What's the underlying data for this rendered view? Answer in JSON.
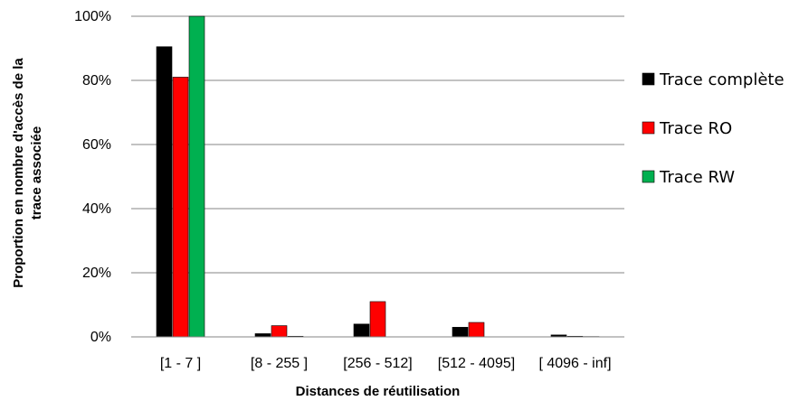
{
  "chart_data": {
    "type": "bar",
    "title": "",
    "xlabel": "Distances de réutilisation",
    "ylabel_lines": [
      "Proportion en nombre d'accès  de la",
      "trace  associée"
    ],
    "categories": [
      "[1 - 7 ]",
      "[8 - 255 ]",
      "[256 - 512]",
      "[512 - 4095]",
      "[ 4096 - inf]"
    ],
    "series": [
      {
        "name": "Trace complète",
        "color": "#000000",
        "values": [
          90.5,
          1.0,
          4.0,
          3.0,
          0.6
        ]
      },
      {
        "name": "Trace RO",
        "color": "#ff0000",
        "values": [
          81.0,
          3.5,
          11.0,
          4.5,
          0.2
        ]
      },
      {
        "name": "Trace RW",
        "color": "#00b050",
        "values": [
          100.0,
          0.2,
          0.0,
          0.0,
          0.1
        ]
      }
    ],
    "ylim": [
      0,
      100
    ],
    "yticks": [
      "0%",
      "20%",
      "40%",
      "60%",
      "80%",
      "100%"
    ],
    "grid": true,
    "legend_position": "right"
  }
}
